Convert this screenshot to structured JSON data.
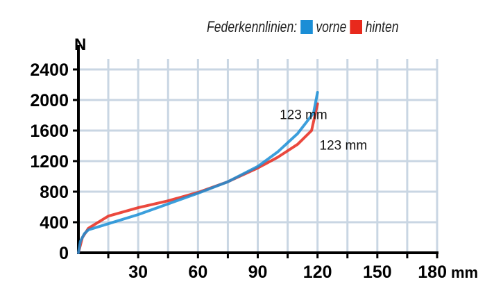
{
  "chart_data": {
    "type": "line",
    "legend_title": "Federkennlinien:",
    "legend_placement": "top-right",
    "xlabel": "mm",
    "ylabel": "N",
    "xlim": [
      0,
      180
    ],
    "ylim": [
      0,
      2400
    ],
    "xticks": [
      30,
      60,
      90,
      120,
      150,
      180
    ],
    "yticks": [
      0,
      400,
      800,
      1200,
      1600,
      2000,
      2400
    ],
    "grid": true,
    "series": [
      {
        "name": "vorne",
        "color": "#1a8ed6",
        "x": [
          0,
          1,
          3,
          5,
          15,
          30,
          45,
          60,
          75,
          90,
          100,
          110,
          118,
          120
        ],
        "y": [
          0,
          150,
          250,
          300,
          380,
          500,
          640,
          780,
          930,
          1130,
          1320,
          1560,
          1830,
          2100
        ]
      },
      {
        "name": "hinten",
        "color": "#e8291c",
        "x": [
          0,
          2,
          5,
          15,
          30,
          45,
          60,
          75,
          90,
          100,
          110,
          117,
          120
        ],
        "y": [
          0,
          200,
          320,
          480,
          590,
          680,
          790,
          930,
          1110,
          1250,
          1420,
          1600,
          1950
        ]
      }
    ],
    "annotations": [
      {
        "text": "123  mm",
        "x": 101,
        "y": 1750
      },
      {
        "text": "123  mm",
        "x": 121,
        "y": 1350
      }
    ]
  }
}
